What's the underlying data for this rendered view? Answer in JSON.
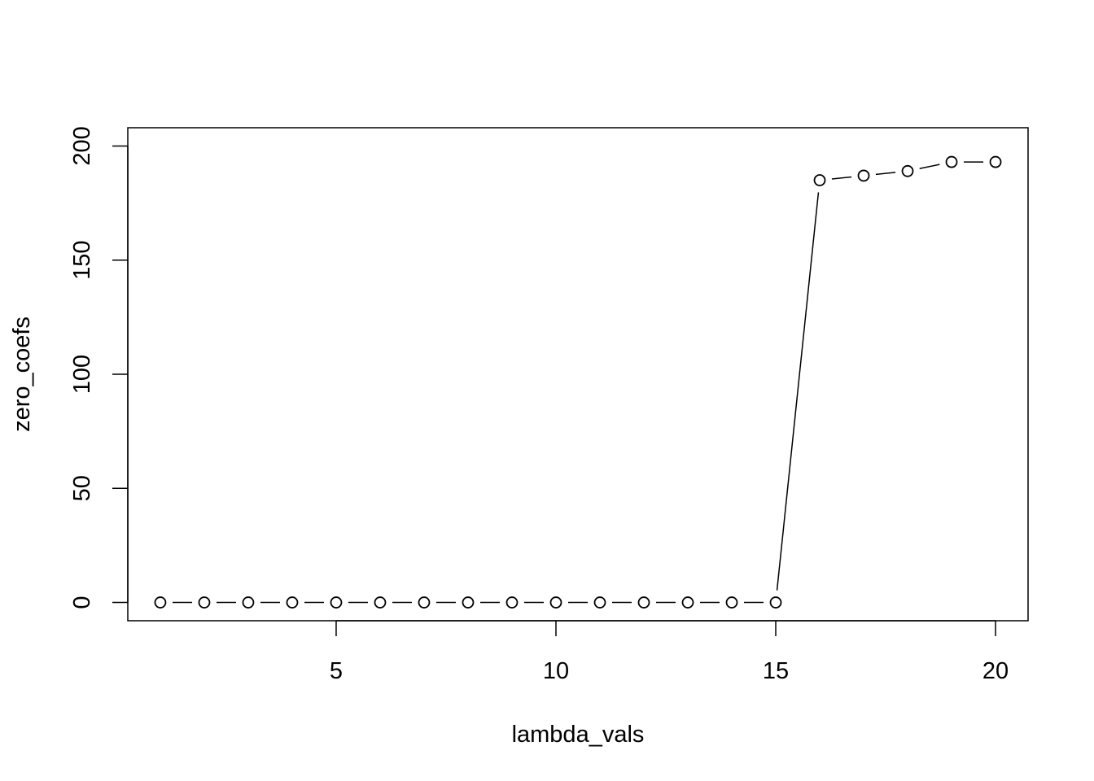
{
  "chart_data": {
    "type": "line",
    "title": "",
    "xlabel": "lambda_vals",
    "ylabel": "zero_coefs",
    "xlim": [
      0.26,
      20.74
    ],
    "ylim": [
      -8,
      208
    ],
    "x_ticks": [
      5,
      10,
      15,
      20
    ],
    "y_ticks": [
      0,
      50,
      100,
      150,
      200
    ],
    "grid": false,
    "legend": "none",
    "markers": "open-circle",
    "line_style": "solid-gapped (type='b')",
    "x": [
      1,
      2,
      3,
      4,
      5,
      6,
      7,
      8,
      9,
      10,
      11,
      12,
      13,
      14,
      15,
      16,
      17,
      18,
      19,
      20
    ],
    "values": [
      0,
      0,
      0,
      0,
      0,
      0,
      0,
      0,
      0,
      0,
      0,
      0,
      0,
      0,
      0,
      185,
      187,
      189,
      193,
      193
    ]
  },
  "colors": {
    "foreground": "#000000",
    "background": "#ffffff"
  }
}
